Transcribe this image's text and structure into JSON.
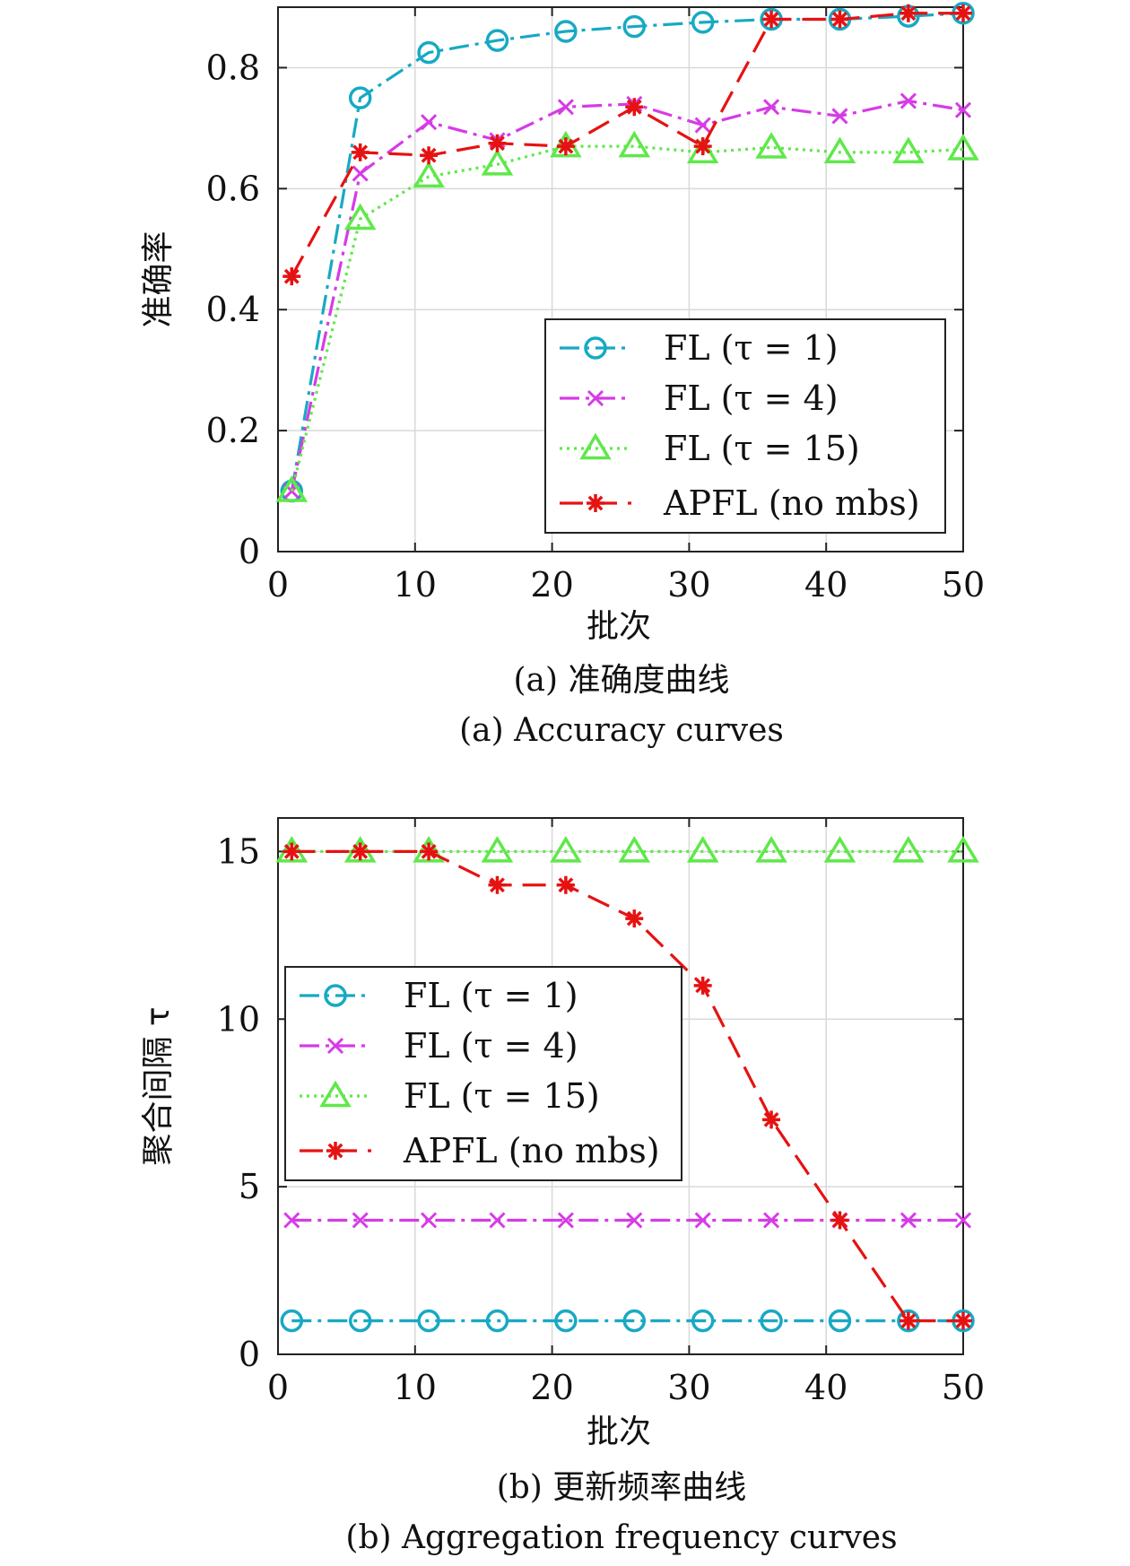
{
  "chart_data": [
    {
      "type": "line",
      "xlabel": "批次",
      "ylabel": "准确率",
      "xlim": [
        0,
        50
      ],
      "ylim": [
        0,
        0.9
      ],
      "xticks": [
        0,
        10,
        20,
        30,
        40,
        50
      ],
      "yticks": [
        0,
        0.2,
        0.4,
        0.6,
        0.8
      ],
      "ytick_labels": [
        "0",
        "0.2",
        "0.4",
        "0.6",
        "0.8"
      ],
      "xtick_labels": [
        "0",
        "10",
        "20",
        "30",
        "40",
        "50"
      ],
      "grid": true,
      "legend_position": "bottom-right",
      "caption_cn": "(a) 准确度曲线",
      "caption_en": "(a) Accuracy curves",
      "x": [
        1,
        6,
        11,
        16,
        21,
        26,
        31,
        36,
        41,
        46,
        50
      ],
      "series": [
        {
          "name": "FL (τ = 1)",
          "color": "#17a9c4",
          "dash": "dashdot",
          "marker": "circle",
          "values": [
            0.1,
            0.75,
            0.825,
            0.845,
            0.86,
            0.868,
            0.875,
            0.88,
            0.88,
            0.885,
            0.89
          ]
        },
        {
          "name": "FL (τ = 4)",
          "color": "#d63be6",
          "dash": "dashdot",
          "marker": "x",
          "values": [
            0.1,
            0.625,
            0.71,
            0.68,
            0.735,
            0.74,
            0.705,
            0.735,
            0.72,
            0.745,
            0.73
          ]
        },
        {
          "name": "FL (τ = 15)",
          "color": "#5fe84a",
          "dash": "dotted",
          "marker": "triangle",
          "values": [
            0.1,
            0.55,
            0.62,
            0.64,
            0.67,
            0.67,
            0.66,
            0.668,
            0.66,
            0.66,
            0.665
          ]
        },
        {
          "name": "APFL (no mbs)",
          "color": "#e61212",
          "dash": "dashed",
          "marker": "asterisk",
          "values": [
            0.455,
            0.66,
            0.655,
            0.675,
            0.67,
            0.735,
            0.67,
            0.88,
            0.88,
            0.89,
            0.89
          ]
        }
      ]
    },
    {
      "type": "line",
      "xlabel": "批次",
      "ylabel": "聚合间隔 τ",
      "xlim": [
        0,
        50
      ],
      "ylim": [
        0,
        16
      ],
      "xticks": [
        0,
        10,
        20,
        30,
        40,
        50
      ],
      "yticks": [
        0,
        5,
        10,
        15
      ],
      "ytick_labels": [
        "0",
        "5",
        "10",
        "15"
      ],
      "xtick_labels": [
        "0",
        "10",
        "20",
        "30",
        "40",
        "50"
      ],
      "grid": true,
      "legend_position": "middle-left",
      "caption_cn": "(b) 更新频率曲线",
      "caption_en": "(b) Aggregation frequency curves",
      "x": [
        1,
        6,
        11,
        16,
        21,
        26,
        31,
        36,
        41,
        46,
        50
      ],
      "series": [
        {
          "name": "FL (τ = 1)",
          "color": "#17a9c4",
          "dash": "dashdot",
          "marker": "circle",
          "values": [
            1,
            1,
            1,
            1,
            1,
            1,
            1,
            1,
            1,
            1,
            1
          ]
        },
        {
          "name": "FL (τ = 4)",
          "color": "#d63be6",
          "dash": "dashdot",
          "marker": "x",
          "values": [
            4,
            4,
            4,
            4,
            4,
            4,
            4,
            4,
            4,
            4,
            4
          ]
        },
        {
          "name": "FL (τ = 15)",
          "color": "#5fe84a",
          "dash": "dotted",
          "marker": "triangle",
          "values": [
            15,
            15,
            15,
            15,
            15,
            15,
            15,
            15,
            15,
            15,
            15
          ]
        },
        {
          "name": "APFL (no mbs)",
          "color": "#e61212",
          "dash": "dashed",
          "marker": "asterisk",
          "values": [
            15,
            15,
            15,
            14,
            14,
            13,
            11,
            7,
            4,
            1,
            1
          ]
        }
      ]
    }
  ]
}
